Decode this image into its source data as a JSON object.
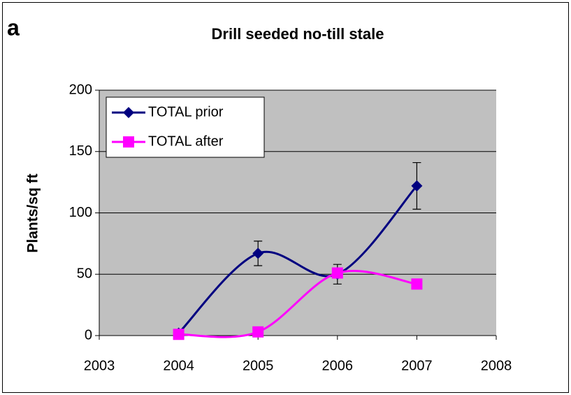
{
  "chart_data": {
    "type": "line",
    "panel_label": "a",
    "title": "Drill seeded no-till stale",
    "y_label": "Plants/sq ft",
    "x": [
      2004,
      2005,
      2006,
      2007
    ],
    "series": [
      {
        "name": "TOTAL prior",
        "color": "#000080",
        "marker": "diamond",
        "values": [
          2,
          67,
          50,
          122
        ],
        "errors": [
          null,
          10,
          8,
          19
        ]
      },
      {
        "name": "TOTAL after",
        "color": "#ff00ff",
        "marker": "square",
        "values": [
          1,
          3,
          51,
          42
        ]
      }
    ],
    "xlim": [
      2003,
      2008
    ],
    "xticks": [
      2003,
      2004,
      2005,
      2006,
      2007,
      2008
    ],
    "ylim": [
      0,
      200
    ],
    "yticks": [
      0,
      50,
      100,
      150,
      200
    ],
    "grid": true,
    "smooth": true,
    "legend": "upper left",
    "plot_background": "#c0c0c0"
  }
}
